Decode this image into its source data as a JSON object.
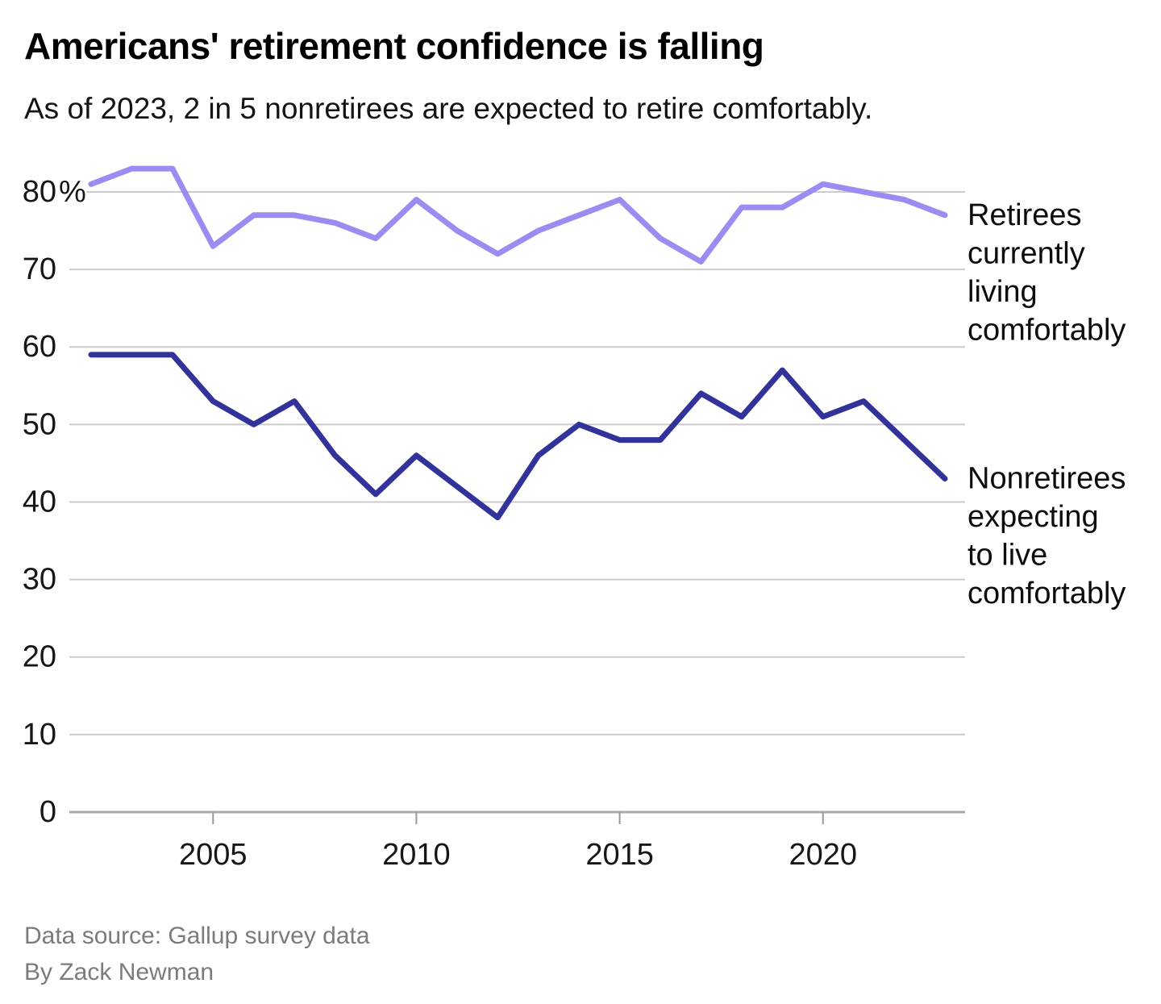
{
  "header": {
    "title": "Americans' retirement confidence is falling",
    "subtitle": "As of 2023, 2 in 5 nonretirees are expected to retire comfortably."
  },
  "footer": {
    "source": "Data source: Gallup survey data",
    "byline": "By Zack Newman"
  },
  "chart_data": {
    "type": "line",
    "title": "Americans' retirement confidence is falling",
    "subtitle": "As of 2023, 2 in 5 nonretirees are expected to retire comfortably.",
    "x": [
      2002,
      2003,
      2004,
      2005,
      2006,
      2007,
      2008,
      2009,
      2010,
      2011,
      2012,
      2013,
      2014,
      2015,
      2016,
      2017,
      2018,
      2019,
      2020,
      2021,
      2022,
      2023
    ],
    "series": [
      {
        "id": "retirees",
        "name": "Retirees currently living comfortably",
        "label_lines": [
          "Retirees",
          "currently",
          "living",
          "comfortably"
        ],
        "color": "#9a8cf0",
        "values": [
          81,
          83,
          83,
          73,
          77,
          77,
          76,
          74,
          79,
          75,
          72,
          75,
          77,
          79,
          74,
          71,
          78,
          78,
          81,
          80,
          79,
          77
        ]
      },
      {
        "id": "nonretirees",
        "name": "Nonretirees expecting to live comfortably",
        "label_lines": [
          "Nonretirees",
          "expecting",
          "to live",
          "comfortably"
        ],
        "color": "#32329b",
        "values": [
          59,
          59,
          59,
          53,
          50,
          53,
          46,
          41,
          46,
          42,
          38,
          46,
          50,
          48,
          48,
          54,
          51,
          57,
          51,
          53,
          48,
          43
        ]
      }
    ],
    "y_axis": {
      "ticks": [
        0,
        10,
        20,
        30,
        40,
        50,
        60,
        70,
        80
      ],
      "top_tick_suffix": "%",
      "range": [
        0,
        86
      ]
    },
    "x_axis": {
      "ticks": [
        2005,
        2010,
        2015,
        2020
      ],
      "range": [
        2002,
        2023
      ]
    },
    "grid": true,
    "legend_position": "right-edge-annotations"
  },
  "colors": {
    "gridline": "#cbcbcb",
    "baseline": "#a8a8a8",
    "tick_mark": "#999999",
    "axis_text": "#161616",
    "annotation_text": "#0d0d0d",
    "footer_text": "#7b7b7b"
  }
}
